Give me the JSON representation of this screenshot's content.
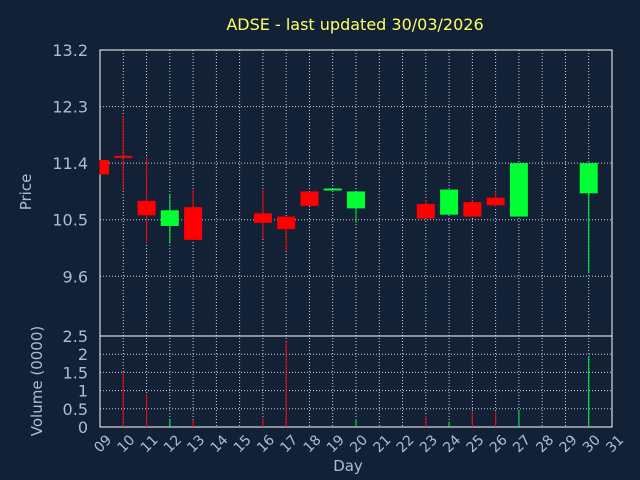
{
  "chart_data": {
    "type": "candlestick",
    "title": "ADSE - last updated 30/03/2026",
    "xlabel": "Day",
    "price_axis": {
      "label": "Price",
      "ylim": [
        8.65,
        13.2
      ],
      "ticks": [
        "13.2",
        "12.3",
        "11.4",
        "10.5",
        "9.6"
      ]
    },
    "volume_axis": {
      "label": "Volume (0000)",
      "ylim": [
        0,
        2.5
      ],
      "ticks": [
        "2.5",
        "2",
        "1.5",
        "1",
        "0.5",
        "0"
      ]
    },
    "x_ticks": [
      "09",
      "10",
      "11",
      "12",
      "13",
      "14",
      "15",
      "16",
      "17",
      "18",
      "19",
      "20",
      "21",
      "22",
      "23",
      "24",
      "25",
      "26",
      "27",
      "28",
      "29",
      "30",
      "31"
    ],
    "grid": true,
    "colors": {
      "up": "#00ff33",
      "down": "#ff0000",
      "background": "#132136",
      "text": "#a9bfd9",
      "title": "#ffff66",
      "grid": "#c8d2e0"
    },
    "candles": [
      {
        "day": 9,
        "open": 11.45,
        "high": 11.45,
        "low": 11.22,
        "close": 11.22
      },
      {
        "day": 10,
        "open": 11.5,
        "high": 12.15,
        "low": 10.97,
        "close": 11.48
      },
      {
        "day": 11,
        "open": 10.8,
        "high": 11.5,
        "low": 10.12,
        "close": 10.57
      },
      {
        "day": 12,
        "open": 10.4,
        "high": 10.9,
        "low": 10.12,
        "close": 10.65
      },
      {
        "day": 13,
        "open": 10.7,
        "high": 10.98,
        "low": 10.18,
        "close": 10.18
      },
      {
        "day": 16,
        "open": 10.6,
        "high": 10.98,
        "low": 10.2,
        "close": 10.45
      },
      {
        "day": 17,
        "open": 10.55,
        "high": 10.55,
        "low": 10.0,
        "close": 10.35
      },
      {
        "day": 18,
        "open": 10.95,
        "high": 10.95,
        "low": 10.72,
        "close": 10.72
      },
      {
        "day": 19,
        "open": 10.97,
        "high": 10.98,
        "low": 10.97,
        "close": 10.98
      },
      {
        "day": 20,
        "open": 10.68,
        "high": 10.95,
        "low": 10.45,
        "close": 10.95
      },
      {
        "day": 23,
        "open": 10.75,
        "high": 10.82,
        "low": 10.52,
        "close": 10.52
      },
      {
        "day": 24,
        "open": 10.58,
        "high": 10.98,
        "low": 10.58,
        "close": 10.98
      },
      {
        "day": 25,
        "open": 10.78,
        "high": 10.82,
        "low": 10.55,
        "close": 10.55
      },
      {
        "day": 26,
        "open": 10.85,
        "high": 10.95,
        "low": 10.7,
        "close": 10.73
      },
      {
        "day": 27,
        "open": 10.55,
        "high": 11.4,
        "low": 10.55,
        "close": 11.4
      },
      {
        "day": 30,
        "open": 10.92,
        "high": 11.4,
        "low": 9.65,
        "close": 11.4
      }
    ],
    "volume": [
      {
        "day": 10,
        "value": 1.5,
        "dir": "down"
      },
      {
        "day": 11,
        "value": 0.9,
        "dir": "down"
      },
      {
        "day": 12,
        "value": 0.22,
        "dir": "up"
      },
      {
        "day": 13,
        "value": 0.2,
        "dir": "down"
      },
      {
        "day": 16,
        "value": 0.25,
        "dir": "down"
      },
      {
        "day": 17,
        "value": 2.35,
        "dir": "down"
      },
      {
        "day": 20,
        "value": 0.22,
        "dir": "up"
      },
      {
        "day": 23,
        "value": 0.3,
        "dir": "down"
      },
      {
        "day": 24,
        "value": 0.15,
        "dir": "up"
      },
      {
        "day": 25,
        "value": 0.42,
        "dir": "down"
      },
      {
        "day": 26,
        "value": 0.42,
        "dir": "down"
      },
      {
        "day": 27,
        "value": 0.45,
        "dir": "up"
      },
      {
        "day": 30,
        "value": 1.95,
        "dir": "up"
      }
    ]
  }
}
